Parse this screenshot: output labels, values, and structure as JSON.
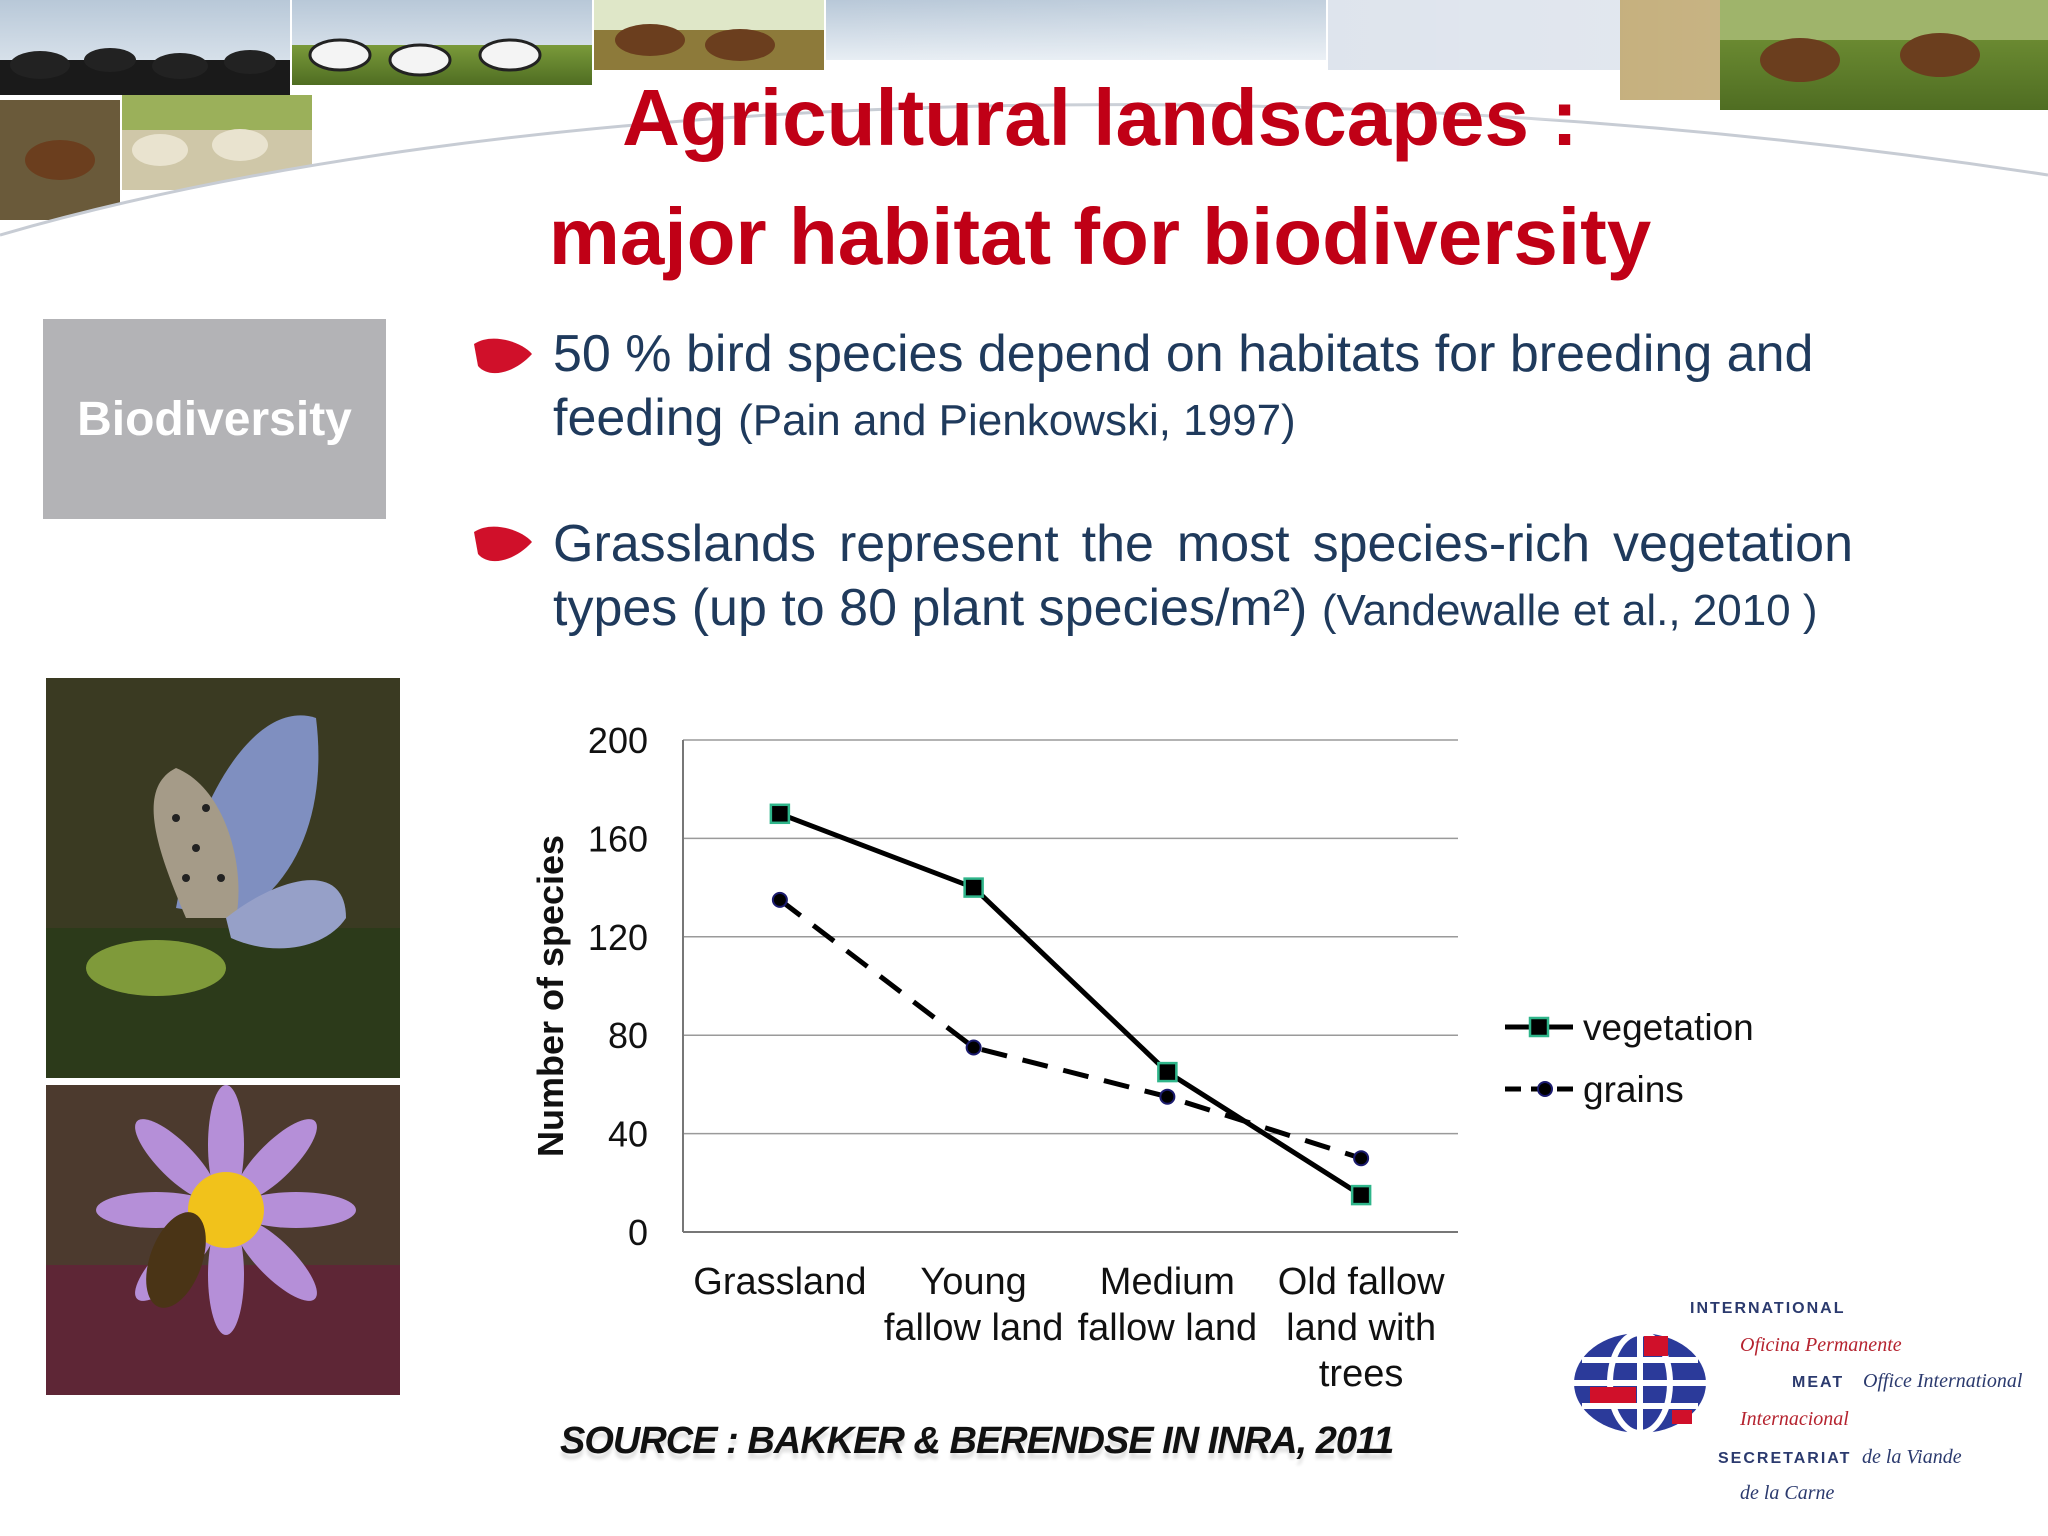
{
  "slide": {
    "title_line1": "Agricultural landscapes :",
    "title_line2": "major habitat for biodiversity",
    "section_label": "Biodiversity",
    "bullets": [
      {
        "text": " 50 % bird species depend on habitats for breeding and feeding",
        "citation": "(Pain and Pienkowski, 1997)"
      },
      {
        "text": " Grasslands represent the most species-rich vegetation types (up to 80 plant species/m²)",
        "citation": "(Vandewalle et al., 2010 )"
      }
    ],
    "source": "SOURCE : BAKKER & BERENDSE IN INRA, 2011"
  },
  "logo": {
    "line1": "INTERNATIONAL",
    "line2": "Oficina Permanente",
    "line3a": "MEAT",
    "line3b": "Office International",
    "line4": "Internacional",
    "line5a": "SECRETARIAT",
    "line5b": "de la Viande",
    "line6": "de la Carne"
  },
  "colors": {
    "title": "#c00016",
    "body_text": "#1f3a5c",
    "section_box": "#b3b3b6",
    "marker_fill": "#000000",
    "marker_edge_vegetation": "#2fb58a",
    "marker_edge_grains": "#1b1b6e"
  },
  "chart_data": {
    "type": "line",
    "categories": [
      "Grassland",
      "Young fallow land",
      "Medium fallow land",
      "Old fallow land with trees"
    ],
    "category_lines": [
      [
        "Grassland"
      ],
      [
        "Young",
        "fallow land"
      ],
      [
        "Medium",
        "fallow land"
      ],
      [
        "Old fallow",
        "land with",
        "trees"
      ]
    ],
    "series": [
      {
        "name": "vegetation",
        "values": [
          170,
          140,
          65,
          15
        ],
        "line_style": "solid",
        "marker": "square"
      },
      {
        "name": "grains",
        "values": [
          135,
          75,
          55,
          30
        ],
        "line_style": "dashed",
        "marker": "circle"
      }
    ],
    "ylabel": "Number of species",
    "xlabel": "",
    "ylim": [
      0,
      200
    ],
    "yticks": [
      0,
      40,
      80,
      120,
      160,
      200
    ],
    "grid": true,
    "legend": "right"
  }
}
